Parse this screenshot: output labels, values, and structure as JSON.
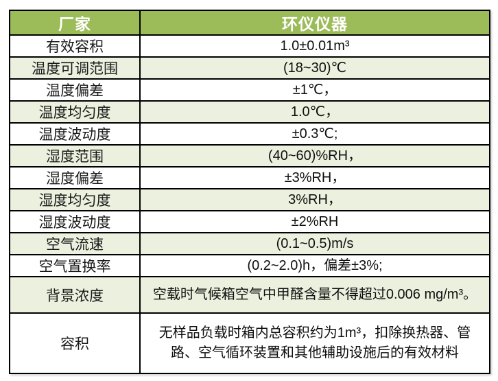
{
  "table": {
    "header": {
      "col1": "厂家",
      "col2": "环仪仪器"
    },
    "rows": [
      {
        "label": "有效容积",
        "value": "1.0±0.01m³"
      },
      {
        "label": "温度可调范围",
        "value": "(18~30)℃"
      },
      {
        "label": "温度偏差",
        "value": "±1℃，"
      },
      {
        "label": "温度均匀度",
        "value": "1.0℃，"
      },
      {
        "label": "温度波动度",
        "value": "±0.3℃;"
      },
      {
        "label": "湿度范围",
        "value": "(40~60)%RH，"
      },
      {
        "label": "湿度偏差",
        "value": "±3%RH，"
      },
      {
        "label": "湿度均匀度",
        "value": "3%RH，"
      },
      {
        "label": "湿度波动度",
        "value": "±2%RH"
      },
      {
        "label": "空气流速",
        "value": "(0.1~0.5)m/s"
      },
      {
        "label": "空气置换率",
        "value": "(0.2~2.0)h，偏差±3%;"
      },
      {
        "label": "背景浓度",
        "value": "空载时气候箱空气中甲醛含量不得超过0.006 mg/m³。"
      },
      {
        "label": "容积",
        "value": "无样品负载时箱内总容积约为1m³，扣除换热器、管路、空气循环装置和其他辅助设施后的有效材料"
      }
    ],
    "colors": {
      "header_bg": "#9CBB59",
      "alt_row_bg": "#EBF1DE",
      "row_bg": "#FFFFFF",
      "border": "#000000",
      "header_text": "#FFFFFF",
      "cell_text": "#141414"
    }
  }
}
